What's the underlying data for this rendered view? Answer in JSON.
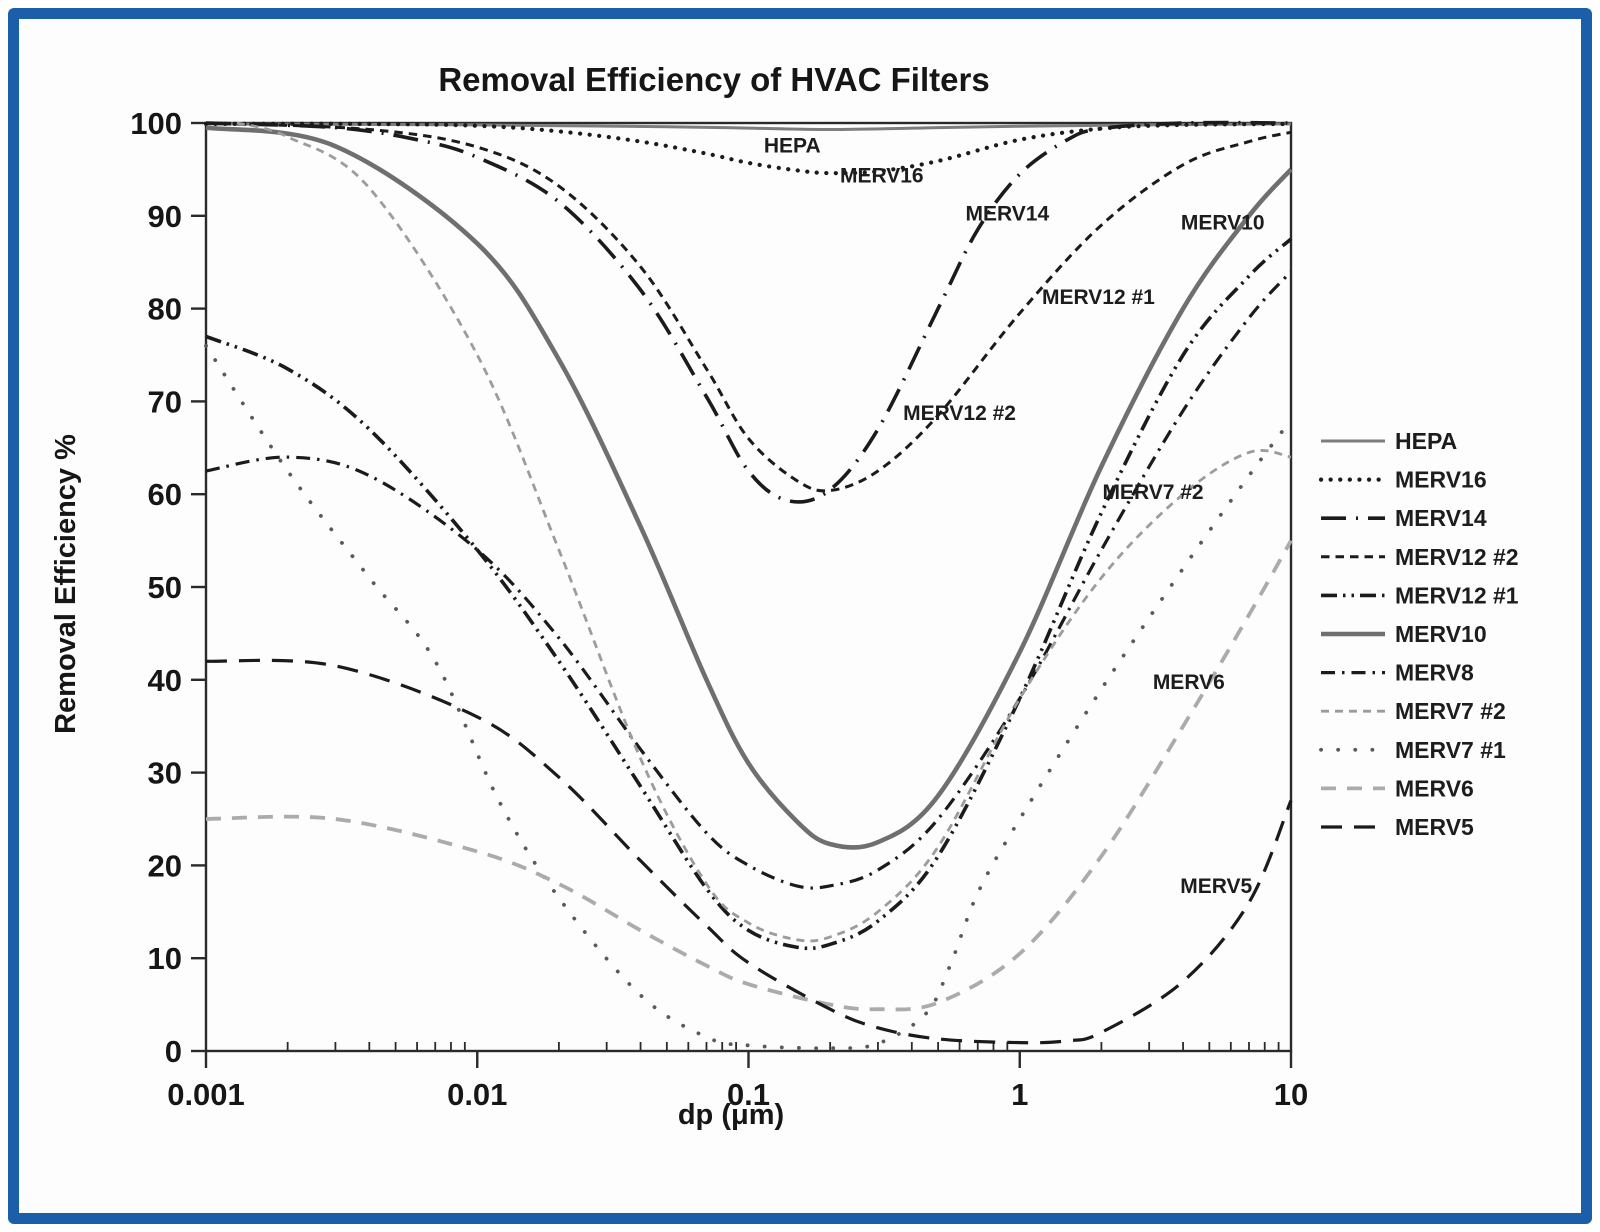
{
  "figure": {
    "border_color": "#1a5fa8",
    "background": "#ffffff"
  },
  "chart_data": {
    "type": "line",
    "title": "Removal Efficiency of HVAC Filters",
    "xlabel": "dp (μm)",
    "ylabel": "Removal Efficiency %",
    "x_scale": "log",
    "xlim": [
      0.001,
      10
    ],
    "ylim": [
      0,
      100
    ],
    "grid": false,
    "legend_position": "right",
    "x_ticks": [
      "0.001",
      "0.01",
      "0.1",
      "1",
      "10"
    ],
    "y_ticks": [
      0,
      10,
      20,
      30,
      40,
      50,
      60,
      70,
      80,
      90,
      100
    ],
    "series": [
      {
        "name": "HEPA",
        "color": "#7d7d7d",
        "width": 3,
        "dash": "",
        "cap": "butt",
        "points": [
          [
            0.001,
            99.9
          ],
          [
            0.01,
            99.8
          ],
          [
            0.05,
            99.6
          ],
          [
            0.1,
            99.45
          ],
          [
            0.2,
            99.3
          ],
          [
            0.5,
            99.5
          ],
          [
            1,
            99.65
          ],
          [
            3,
            99.8
          ],
          [
            10,
            99.9
          ]
        ]
      },
      {
        "name": "MERV16",
        "color": "#1b1b1b",
        "width": 4.2,
        "dash": "0.1 9.5",
        "cap": "round",
        "points": [
          [
            0.001,
            99.9
          ],
          [
            0.004,
            99.9
          ],
          [
            0.01,
            99.7
          ],
          [
            0.02,
            99.1
          ],
          [
            0.04,
            98
          ],
          [
            0.07,
            96.7
          ],
          [
            0.1,
            95.7
          ],
          [
            0.15,
            94.9
          ],
          [
            0.2,
            94.6
          ],
          [
            0.3,
            94.8
          ],
          [
            0.5,
            95.9
          ],
          [
            1,
            98.2
          ],
          [
            2,
            99.4
          ],
          [
            4,
            99.8
          ],
          [
            10,
            99.9
          ]
        ]
      },
      {
        "name": "MERV14",
        "color": "#1b1b1b",
        "width": 3.6,
        "dash": "25 10 2 10",
        "cap": "butt",
        "points": [
          [
            0.001,
            100
          ],
          [
            0.003,
            99.5
          ],
          [
            0.006,
            98.2
          ],
          [
            0.01,
            96.3
          ],
          [
            0.02,
            91.5
          ],
          [
            0.04,
            82
          ],
          [
            0.07,
            70.5
          ],
          [
            0.1,
            62.5
          ],
          [
            0.14,
            59.3
          ],
          [
            0.2,
            60.5
          ],
          [
            0.3,
            67
          ],
          [
            0.5,
            80
          ],
          [
            0.7,
            88.5
          ],
          [
            1,
            94.5
          ],
          [
            1.5,
            98.2
          ],
          [
            2,
            99.4
          ],
          [
            4,
            100
          ],
          [
            10,
            100
          ]
        ]
      },
      {
        "name": "MERV12 #2",
        "color": "#1b1b1b",
        "width": 3,
        "dash": "8.5 6",
        "cap": "butt",
        "points": [
          [
            0.001,
            100
          ],
          [
            0.004,
            99.3
          ],
          [
            0.01,
            97.4
          ],
          [
            0.02,
            93.2
          ],
          [
            0.04,
            84.5
          ],
          [
            0.07,
            73.5
          ],
          [
            0.1,
            66
          ],
          [
            0.15,
            61.5
          ],
          [
            0.2,
            60.4
          ],
          [
            0.3,
            62.5
          ],
          [
            0.5,
            68.5
          ],
          [
            1,
            79.5
          ],
          [
            2,
            89
          ],
          [
            4,
            95.5
          ],
          [
            7,
            98
          ],
          [
            10,
            99
          ]
        ]
      },
      {
        "name": "MERV12 #1",
        "color": "#1b1b1b",
        "width": 3.6,
        "dash": "16 6 2.5 6 2.5 6",
        "cap": "butt",
        "points": [
          [
            0.001,
            77
          ],
          [
            0.002,
            73.5
          ],
          [
            0.004,
            67
          ],
          [
            0.01,
            54
          ],
          [
            0.02,
            42
          ],
          [
            0.04,
            28.5
          ],
          [
            0.07,
            17.5
          ],
          [
            0.1,
            13
          ],
          [
            0.15,
            11.2
          ],
          [
            0.2,
            11.5
          ],
          [
            0.3,
            14
          ],
          [
            0.5,
            21
          ],
          [
            1,
            38
          ],
          [
            2,
            58
          ],
          [
            4,
            75
          ],
          [
            7,
            83.5
          ],
          [
            10,
            87.5
          ]
        ]
      },
      {
        "name": "MERV10",
        "color": "#6f6f6f",
        "width": 4.6,
        "dash": "",
        "cap": "butt",
        "points": [
          [
            0.001,
            99.5
          ],
          [
            0.003,
            97.5
          ],
          [
            0.01,
            87
          ],
          [
            0.02,
            74.5
          ],
          [
            0.04,
            56.5
          ],
          [
            0.07,
            40
          ],
          [
            0.1,
            31
          ],
          [
            0.15,
            24.8
          ],
          [
            0.2,
            22.3
          ],
          [
            0.3,
            22.5
          ],
          [
            0.5,
            27.5
          ],
          [
            1,
            43
          ],
          [
            2,
            63
          ],
          [
            4,
            80
          ],
          [
            7,
            90
          ],
          [
            10,
            95
          ]
        ]
      },
      {
        "name": "MERV8",
        "color": "#1b1b1b",
        "width": 3.2,
        "dash": "14 7 2.5 7",
        "cap": "butt",
        "points": [
          [
            0.001,
            62.5
          ],
          [
            0.002,
            64
          ],
          [
            0.004,
            62
          ],
          [
            0.01,
            54
          ],
          [
            0.02,
            44.5
          ],
          [
            0.04,
            32.5
          ],
          [
            0.07,
            23.5
          ],
          [
            0.1,
            20
          ],
          [
            0.15,
            17.8
          ],
          [
            0.2,
            17.8
          ],
          [
            0.3,
            19.5
          ],
          [
            0.5,
            25
          ],
          [
            1,
            38
          ],
          [
            2,
            54
          ],
          [
            4,
            69
          ],
          [
            7,
            79
          ],
          [
            10,
            84
          ]
        ]
      },
      {
        "name": "MERV7 #2",
        "color": "#9c9c9c",
        "width": 2.8,
        "dash": "8 6",
        "cap": "butt",
        "points": [
          [
            0.0013,
            100
          ],
          [
            0.002,
            98.5
          ],
          [
            0.004,
            93
          ],
          [
            0.01,
            75
          ],
          [
            0.02,
            54
          ],
          [
            0.04,
            31.5
          ],
          [
            0.07,
            18
          ],
          [
            0.1,
            13.8
          ],
          [
            0.15,
            12
          ],
          [
            0.2,
            12.3
          ],
          [
            0.3,
            15
          ],
          [
            0.5,
            22
          ],
          [
            1,
            38
          ],
          [
            2,
            51
          ],
          [
            4,
            60
          ],
          [
            7,
            64.5
          ],
          [
            10,
            64
          ]
        ]
      },
      {
        "name": "MERV7 #1",
        "color": "#5a5a5a",
        "width": 3.8,
        "dash": "0.1 17",
        "cap": "round",
        "points": [
          [
            0.001,
            76
          ],
          [
            0.002,
            62.5
          ],
          [
            0.004,
            51
          ],
          [
            0.007,
            42
          ],
          [
            0.012,
            27
          ],
          [
            0.02,
            16.5
          ],
          [
            0.04,
            6
          ],
          [
            0.07,
            1.5
          ],
          [
            0.1,
            0.6
          ],
          [
            0.2,
            0.3
          ],
          [
            0.3,
            0.8
          ],
          [
            0.45,
            4
          ],
          [
            0.55,
            9
          ],
          [
            0.7,
            17
          ],
          [
            1,
            25
          ],
          [
            2,
            39
          ],
          [
            4,
            52
          ],
          [
            7,
            62
          ],
          [
            10,
            68
          ]
        ]
      },
      {
        "name": "MERV6",
        "color": "#ababab",
        "width": 3.8,
        "dash": "15 11",
        "cap": "butt",
        "points": [
          [
            0.001,
            25
          ],
          [
            0.003,
            25
          ],
          [
            0.01,
            21.5
          ],
          [
            0.02,
            18
          ],
          [
            0.04,
            13
          ],
          [
            0.07,
            9.2
          ],
          [
            0.1,
            7.2
          ],
          [
            0.2,
            5
          ],
          [
            0.3,
            4.5
          ],
          [
            0.5,
            5.2
          ],
          [
            1,
            10.5
          ],
          [
            2,
            21
          ],
          [
            4,
            35
          ],
          [
            7,
            47
          ],
          [
            10,
            55
          ]
        ]
      },
      {
        "name": "MERV5",
        "color": "#1b1b1b",
        "width": 3.2,
        "dash": "21 12",
        "cap": "butt",
        "points": [
          [
            0.001,
            42
          ],
          [
            0.003,
            41.5
          ],
          [
            0.01,
            36
          ],
          [
            0.02,
            29.5
          ],
          [
            0.04,
            20.5
          ],
          [
            0.07,
            13.5
          ],
          [
            0.1,
            9.5
          ],
          [
            0.2,
            4.5
          ],
          [
            0.3,
            2.5
          ],
          [
            0.5,
            1.3
          ],
          [
            1,
            0.9
          ],
          [
            1.5,
            1.1
          ],
          [
            2,
            2
          ],
          [
            4,
            7.5
          ],
          [
            7,
            16
          ],
          [
            10,
            27
          ]
        ]
      }
    ],
    "annotations": [
      {
        "text": "HEPA",
        "dp": 0.145,
        "value": 96.8
      },
      {
        "text": "MERV16",
        "dp": 0.31,
        "value": 93.6
      },
      {
        "text": "MERV14",
        "dp": 0.9,
        "value": 89.5
      },
      {
        "text": "MERV10",
        "dp": 5.6,
        "value": 88.5
      },
      {
        "text": "MERV12 #1",
        "dp": 1.95,
        "value": 80.5
      },
      {
        "text": "MERV12 #2",
        "dp": 0.6,
        "value": 68.0
      },
      {
        "text": "MERV7 #2",
        "dp": 3.1,
        "value": 59.5
      },
      {
        "text": "MERV6",
        "dp": 4.2,
        "value": 39.0
      },
      {
        "text": "MERV5",
        "dp": 5.3,
        "value": 17.0
      }
    ],
    "legend_entries": [
      "HEPA",
      "MERV16",
      "MERV14",
      "MERV12 #2",
      "MERV12 #1",
      "MERV10",
      "MERV8",
      "MERV7 #2",
      "MERV7 #1",
      "MERV6",
      "MERV5"
    ]
  }
}
